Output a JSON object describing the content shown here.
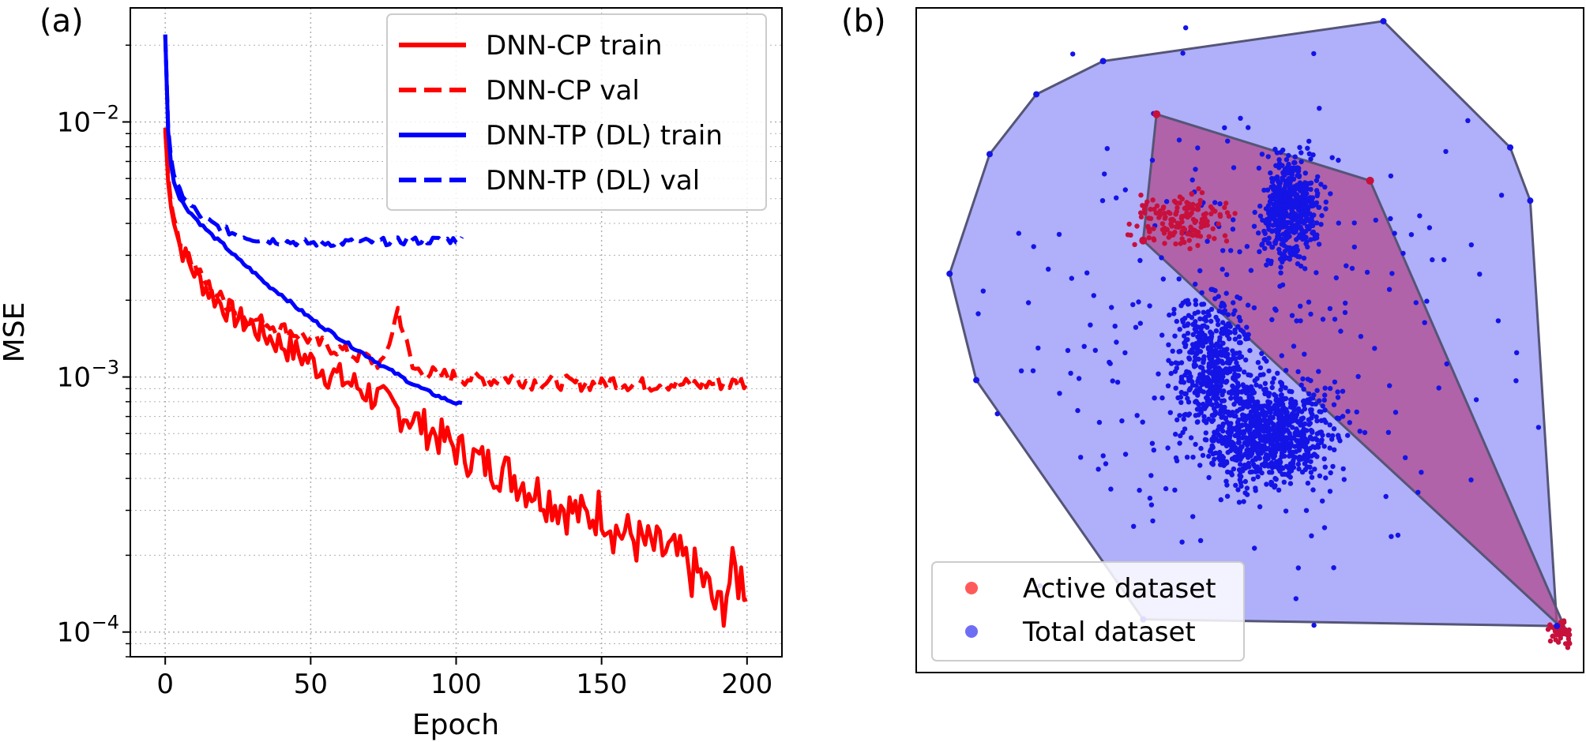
{
  "panel_labels": {
    "a": "(a)",
    "b": "(b)"
  },
  "colors": {
    "red": "#ff0000",
    "blue": "#0000ff",
    "grid": "#b0b0b0",
    "axis": "#000000",
    "hull_blue_fill": "#6e6ef5",
    "hull_red_fill": "#b04a8c",
    "active_point": "#c8103c",
    "total_point": "#1414e6"
  },
  "chart_data": [
    {
      "type": "line",
      "title": "",
      "xlabel": "Epoch",
      "ylabel": "MSE",
      "xlim": [
        -12,
        212
      ],
      "ylim": [
        8e-05,
        0.028
      ],
      "yscale": "log",
      "grid": true,
      "legend_position": "top-right",
      "x_ticks": [
        0,
        50,
        100,
        150,
        200
      ],
      "x_tick_labels": [
        "0",
        "50",
        "100",
        "150",
        "200"
      ],
      "y_ticks": [
        0.0001,
        0.001,
        0.01
      ],
      "y_tick_labels": [
        {
          "base": "10",
          "exp": "−4"
        },
        {
          "base": "10",
          "exp": "−3"
        },
        {
          "base": "10",
          "exp": "−2"
        }
      ],
      "series": [
        {
          "name": "DNN-CP train",
          "color": "#ff0000",
          "dash": "solid",
          "x": [
            0,
            1,
            2,
            3,
            5,
            8,
            12,
            16,
            20,
            25,
            30,
            35,
            40,
            45,
            50,
            55,
            60,
            65,
            70,
            75,
            80,
            85,
            90,
            95,
            100,
            105,
            110,
            115,
            120,
            125,
            130,
            135,
            140,
            145,
            150,
            155,
            160,
            165,
            170,
            175,
            180,
            185,
            190,
            195,
            200
          ],
          "y": [
            0.0095,
            0.0058,
            0.0046,
            0.004,
            0.0033,
            0.0028,
            0.0024,
            0.0021,
            0.0019,
            0.0017,
            0.00158,
            0.00145,
            0.00135,
            0.00125,
            0.00115,
            0.00106,
            0.00099,
            0.00093,
            0.00087,
            0.0008,
            0.00074,
            0.00069,
            0.00063,
            0.00058,
            0.00053,
            0.00049,
            0.00046,
            0.00044,
            0.00041,
            0.00037,
            0.00035,
            0.00032,
            0.0003,
            0.00028,
            0.00031,
            0.00025,
            0.00024,
            0.00022,
            0.00021,
            0.0002,
            0.00018,
            0.00016,
            0.00012,
            0.00017,
            0.00016
          ]
        },
        {
          "name": "DNN-CP val",
          "color": "#ff0000",
          "dash": "dashed",
          "x": [
            0,
            1,
            2,
            3,
            5,
            8,
            12,
            16,
            20,
            25,
            30,
            35,
            40,
            45,
            50,
            55,
            60,
            65,
            70,
            75,
            80,
            85,
            90,
            95,
            100,
            105,
            110,
            115,
            120,
            125,
            130,
            135,
            140,
            145,
            150,
            155,
            160,
            165,
            170,
            175,
            180,
            185,
            190,
            195,
            200
          ],
          "y": [
            0.0092,
            0.0062,
            0.0048,
            0.0042,
            0.0035,
            0.003,
            0.0025,
            0.0022,
            0.002,
            0.0018,
            0.0017,
            0.00162,
            0.00155,
            0.00148,
            0.0014,
            0.00133,
            0.00128,
            0.00122,
            0.00118,
            0.00112,
            0.00185,
            0.00108,
            0.00104,
            0.00102,
            0.001,
            0.00099,
            0.00098,
            0.00097,
            0.001,
            0.00096,
            0.00095,
            0.00096,
            0.00094,
            0.00095,
            0.00093,
            0.00097,
            0.00094,
            0.00093,
            0.00095,
            0.00094,
            0.00093,
            0.00094,
            0.00095,
            0.00094,
            0.00096
          ]
        },
        {
          "name": "DNN-TP (DL) train",
          "color": "#0000ff",
          "dash": "solid",
          "x": [
            0,
            1,
            2,
            3,
            5,
            8,
            12,
            16,
            20,
            25,
            30,
            35,
            40,
            45,
            50,
            55,
            60,
            65,
            70,
            75,
            80,
            85,
            90,
            95,
            100,
            102
          ],
          "y": [
            0.022,
            0.0092,
            0.0068,
            0.0058,
            0.005,
            0.0045,
            0.004,
            0.0036,
            0.0033,
            0.0029,
            0.0026,
            0.0023,
            0.0021,
            0.00188,
            0.0017,
            0.00155,
            0.00142,
            0.0013,
            0.0012,
            0.0011,
            0.00102,
            0.00094,
            0.00088,
            0.00083,
            0.00079,
            0.00078
          ]
        },
        {
          "name": "DNN-TP (DL) val",
          "color": "#0000ff",
          "dash": "dashed",
          "x": [
            0,
            1,
            2,
            3,
            5,
            8,
            12,
            16,
            20,
            25,
            30,
            35,
            40,
            45,
            50,
            55,
            60,
            65,
            70,
            75,
            80,
            85,
            90,
            95,
            100,
            102
          ],
          "y": [
            0.022,
            0.0095,
            0.0072,
            0.0062,
            0.0054,
            0.0048,
            0.0043,
            0.004,
            0.0038,
            0.0036,
            0.0035,
            0.00345,
            0.0034,
            0.00338,
            0.00335,
            0.00336,
            0.00337,
            0.00338,
            0.00339,
            0.0034,
            0.00341,
            0.00342,
            0.00343,
            0.00344,
            0.00345,
            0.00346
          ]
        }
      ]
    },
    {
      "type": "scatter",
      "title": "",
      "xlabel": "",
      "ylabel": "",
      "xlim": [
        0,
        1
      ],
      "ylim": [
        0,
        1
      ],
      "axes_visible": false,
      "legend_position": "bottom-left",
      "series": [
        {
          "name": "Active dataset",
          "color": "#ff5a5a",
          "marker_color": "#c8103c",
          "hull": [
            [
              0.36,
              0.84
            ],
            [
              0.68,
              0.74
            ],
            [
              0.975,
              0.06
            ],
            [
              0.34,
              0.65
            ]
          ],
          "clusters": [
            {
              "cx": 0.4,
              "cy": 0.68,
              "rx": 0.06,
              "ry": 0.035,
              "n": 160
            },
            {
              "cx": 0.965,
              "cy": 0.06,
              "rx": 0.015,
              "ry": 0.015,
              "n": 50
            }
          ]
        },
        {
          "name": "Total dataset",
          "color": "#6e6ef5",
          "marker_color": "#1414e6",
          "hull": [
            [
              0.28,
              0.92
            ],
            [
              0.7,
              0.98
            ],
            [
              0.89,
              0.79
            ],
            [
              0.92,
              0.71
            ],
            [
              0.96,
              0.07
            ],
            [
              0.34,
              0.08
            ],
            [
              0.09,
              0.44
            ],
            [
              0.05,
              0.6
            ],
            [
              0.11,
              0.78
            ],
            [
              0.18,
              0.87
            ]
          ],
          "clusters": [
            {
              "cx": 0.52,
              "cy": 0.36,
              "rx": 0.09,
              "ry": 0.07,
              "n": 900
            },
            {
              "cx": 0.44,
              "cy": 0.47,
              "rx": 0.05,
              "ry": 0.08,
              "n": 400
            },
            {
              "cx": 0.56,
              "cy": 0.7,
              "rx": 0.035,
              "ry": 0.07,
              "n": 500
            },
            {
              "cx": 0.5,
              "cy": 0.52,
              "rx": 0.3,
              "ry": 0.32,
              "n": 300
            }
          ]
        }
      ]
    }
  ]
}
